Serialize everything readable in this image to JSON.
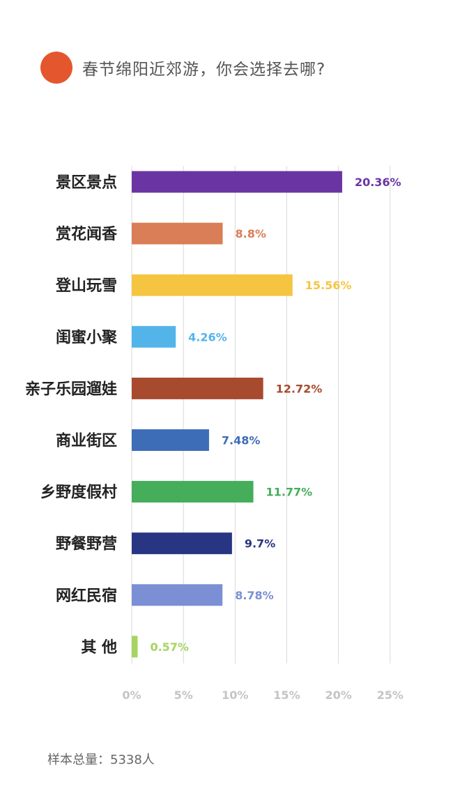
{
  "header": {
    "title": "春节绵阳近郊游，你会选择去哪?"
  },
  "chart_data": {
    "type": "bar",
    "orientation": "horizontal",
    "categories": [
      "景区景点",
      "赏花闻香",
      "登山玩雪",
      "闺蜜小聚",
      "亲子乐园遛娃",
      "商业街区",
      "乡野度假村",
      "野餐野营",
      "网红民宿",
      "其 他"
    ],
    "values": [
      20.36,
      8.8,
      15.56,
      4.26,
      12.72,
      7.48,
      11.77,
      9.7,
      8.78,
      0.57
    ],
    "value_labels": [
      "20.36%",
      "8.8%",
      "15.56%",
      "4.26%",
      "12.72%",
      "7.48%",
      "11.77%",
      "9.7%",
      "8.78%",
      "0.57%"
    ],
    "colors": [
      "#6a35a3",
      "#d97e56",
      "#f5c542",
      "#53b4ea",
      "#a74a2d",
      "#3d6db7",
      "#46ad5b",
      "#283583",
      "#7b8fd4",
      "#a6d460"
    ],
    "xlim": [
      0,
      25
    ],
    "xticks": [
      0,
      5,
      10,
      15,
      20,
      25
    ],
    "xtick_labels": [
      "0%",
      "5%",
      "10%",
      "15%",
      "20%",
      "25%"
    ],
    "grid": true,
    "legend": "none"
  },
  "footer": {
    "note": "样本总量：5338人"
  }
}
